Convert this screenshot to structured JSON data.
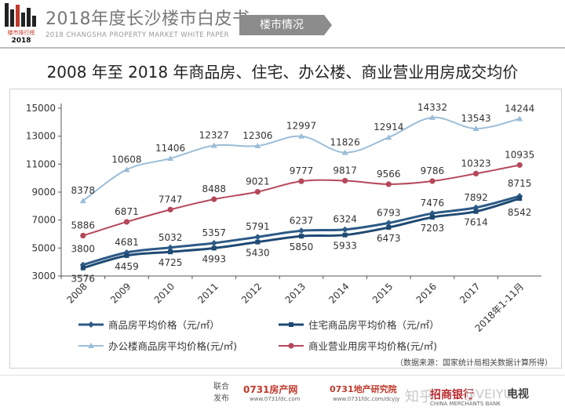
{
  "header": {
    "logo_line1": "楼市排行榜",
    "logo_year": "2018",
    "title": "2018年度长沙楼市白皮书",
    "subtitle": "2018 CHANGSHA PROPERTY MARKET WHITE PAPER",
    "tag": "楼市情况"
  },
  "colors": {
    "commercial_housing": "#2c5a86",
    "residential": "#1f4a73",
    "office": "#9bbdd8",
    "business": "#b5475a",
    "axis": "#555555"
  },
  "chart_data": {
    "type": "line",
    "title": "2008 年至 2018 年商品房、住宅、办公楼、商业营业用房成交均价",
    "categories": [
      "2008",
      "2009",
      "2010",
      "2011",
      "2012",
      "2013",
      "2014",
      "2015",
      "2016",
      "2017",
      "2018年1-11月"
    ],
    "ylim": [
      3000,
      15000
    ],
    "yticks": [
      3000,
      5000,
      7000,
      9000,
      11000,
      13000,
      15000
    ],
    "grid": false,
    "legend_position": "bottom",
    "series": [
      {
        "name": "商品房平均价格（元/㎡）",
        "marker": "diamond",
        "values": [
          3800,
          4681,
          5032,
          5357,
          5791,
          6237,
          6324,
          6793,
          7476,
          7892,
          8715
        ]
      },
      {
        "name": "住宅商品房平均价格（元/㎡）",
        "marker": "square",
        "values": [
          3576,
          4459,
          4725,
          4993,
          5430,
          5850,
          5933,
          6473,
          7203,
          7614,
          8542
        ]
      },
      {
        "name": "办公楼商品房平均价格(元/㎡)",
        "marker": "triangle",
        "values": [
          8378,
          10608,
          11406,
          12327,
          12306,
          12997,
          11826,
          12914,
          14332,
          13543,
          14244
        ]
      },
      {
        "name": "商业营业用房平均价格(元/㎡)",
        "marker": "circle",
        "values": [
          5886,
          6871,
          7747,
          8488,
          9021,
          9777,
          9817,
          9566,
          9786,
          10323,
          10935
        ]
      }
    ],
    "source_note": "（数据来源：国家统计局相关数据计算所得）"
  },
  "footer": {
    "label_top": "联合",
    "label_bottom": "发布",
    "brand1": "0731房产网",
    "brand1_url": "www.0731fdc.com",
    "brand2": "0731地产研究院",
    "brand2_url": "www.0731fdc.com/dcyjy",
    "brand3": "招商银行",
    "brand3_sub": "CHINA MERCHANTS BANK",
    "watermark": "知乎",
    "watermark2": "@VEIYU",
    "brand4": "电视"
  }
}
